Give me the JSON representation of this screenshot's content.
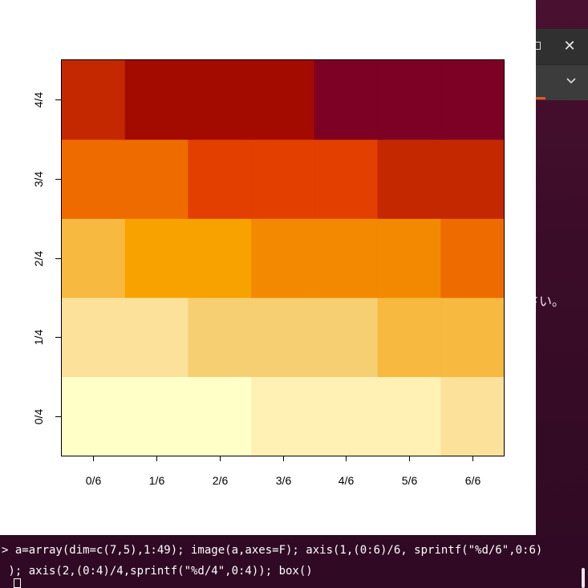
{
  "background_window": {
    "visible_text": "さい。"
  },
  "terminal": {
    "line1": "> a=array(dim=c(7,5),1:49); image(a,axes=F); axis(1,(0:6)/6, sprintf(\"%d/6\",0:6)",
    "line2": " ); axis(2,(0:4)/4,sprintf(\"%d/4\",0:4)); box()"
  },
  "chart_data": {
    "type": "heatmap",
    "title": "",
    "xlabel": "",
    "ylabel": "",
    "x_ticks": [
      "0/6",
      "1/6",
      "2/6",
      "3/6",
      "4/6",
      "5/6",
      "6/6"
    ],
    "y_ticks": [
      "0/4",
      "1/4",
      "2/4",
      "3/4",
      "4/4"
    ],
    "x": [
      0,
      0.1667,
      0.3333,
      0.5,
      0.6667,
      0.8333,
      1
    ],
    "y": [
      0,
      0.25,
      0.5,
      0.75,
      1
    ],
    "values": [
      [
        1,
        2,
        3,
        4,
        5,
        6,
        7
      ],
      [
        8,
        9,
        10,
        11,
        12,
        13,
        14
      ],
      [
        15,
        16,
        17,
        18,
        19,
        20,
        21
      ],
      [
        22,
        23,
        24,
        25,
        26,
        27,
        28
      ],
      [
        29,
        30,
        31,
        32,
        33,
        34,
        35
      ]
    ],
    "zlim": [
      1,
      35
    ],
    "palette": [
      "#FFFFC8",
      "#FFF1B3",
      "#FBE19A",
      "#F7CF73",
      "#F7B940",
      "#F8A200",
      "#F38900",
      "#EE6B00",
      "#E23F00",
      "#C42800",
      "#A30A00",
      "#7D0025"
    ],
    "box": true,
    "grid": false,
    "legend": "none"
  }
}
